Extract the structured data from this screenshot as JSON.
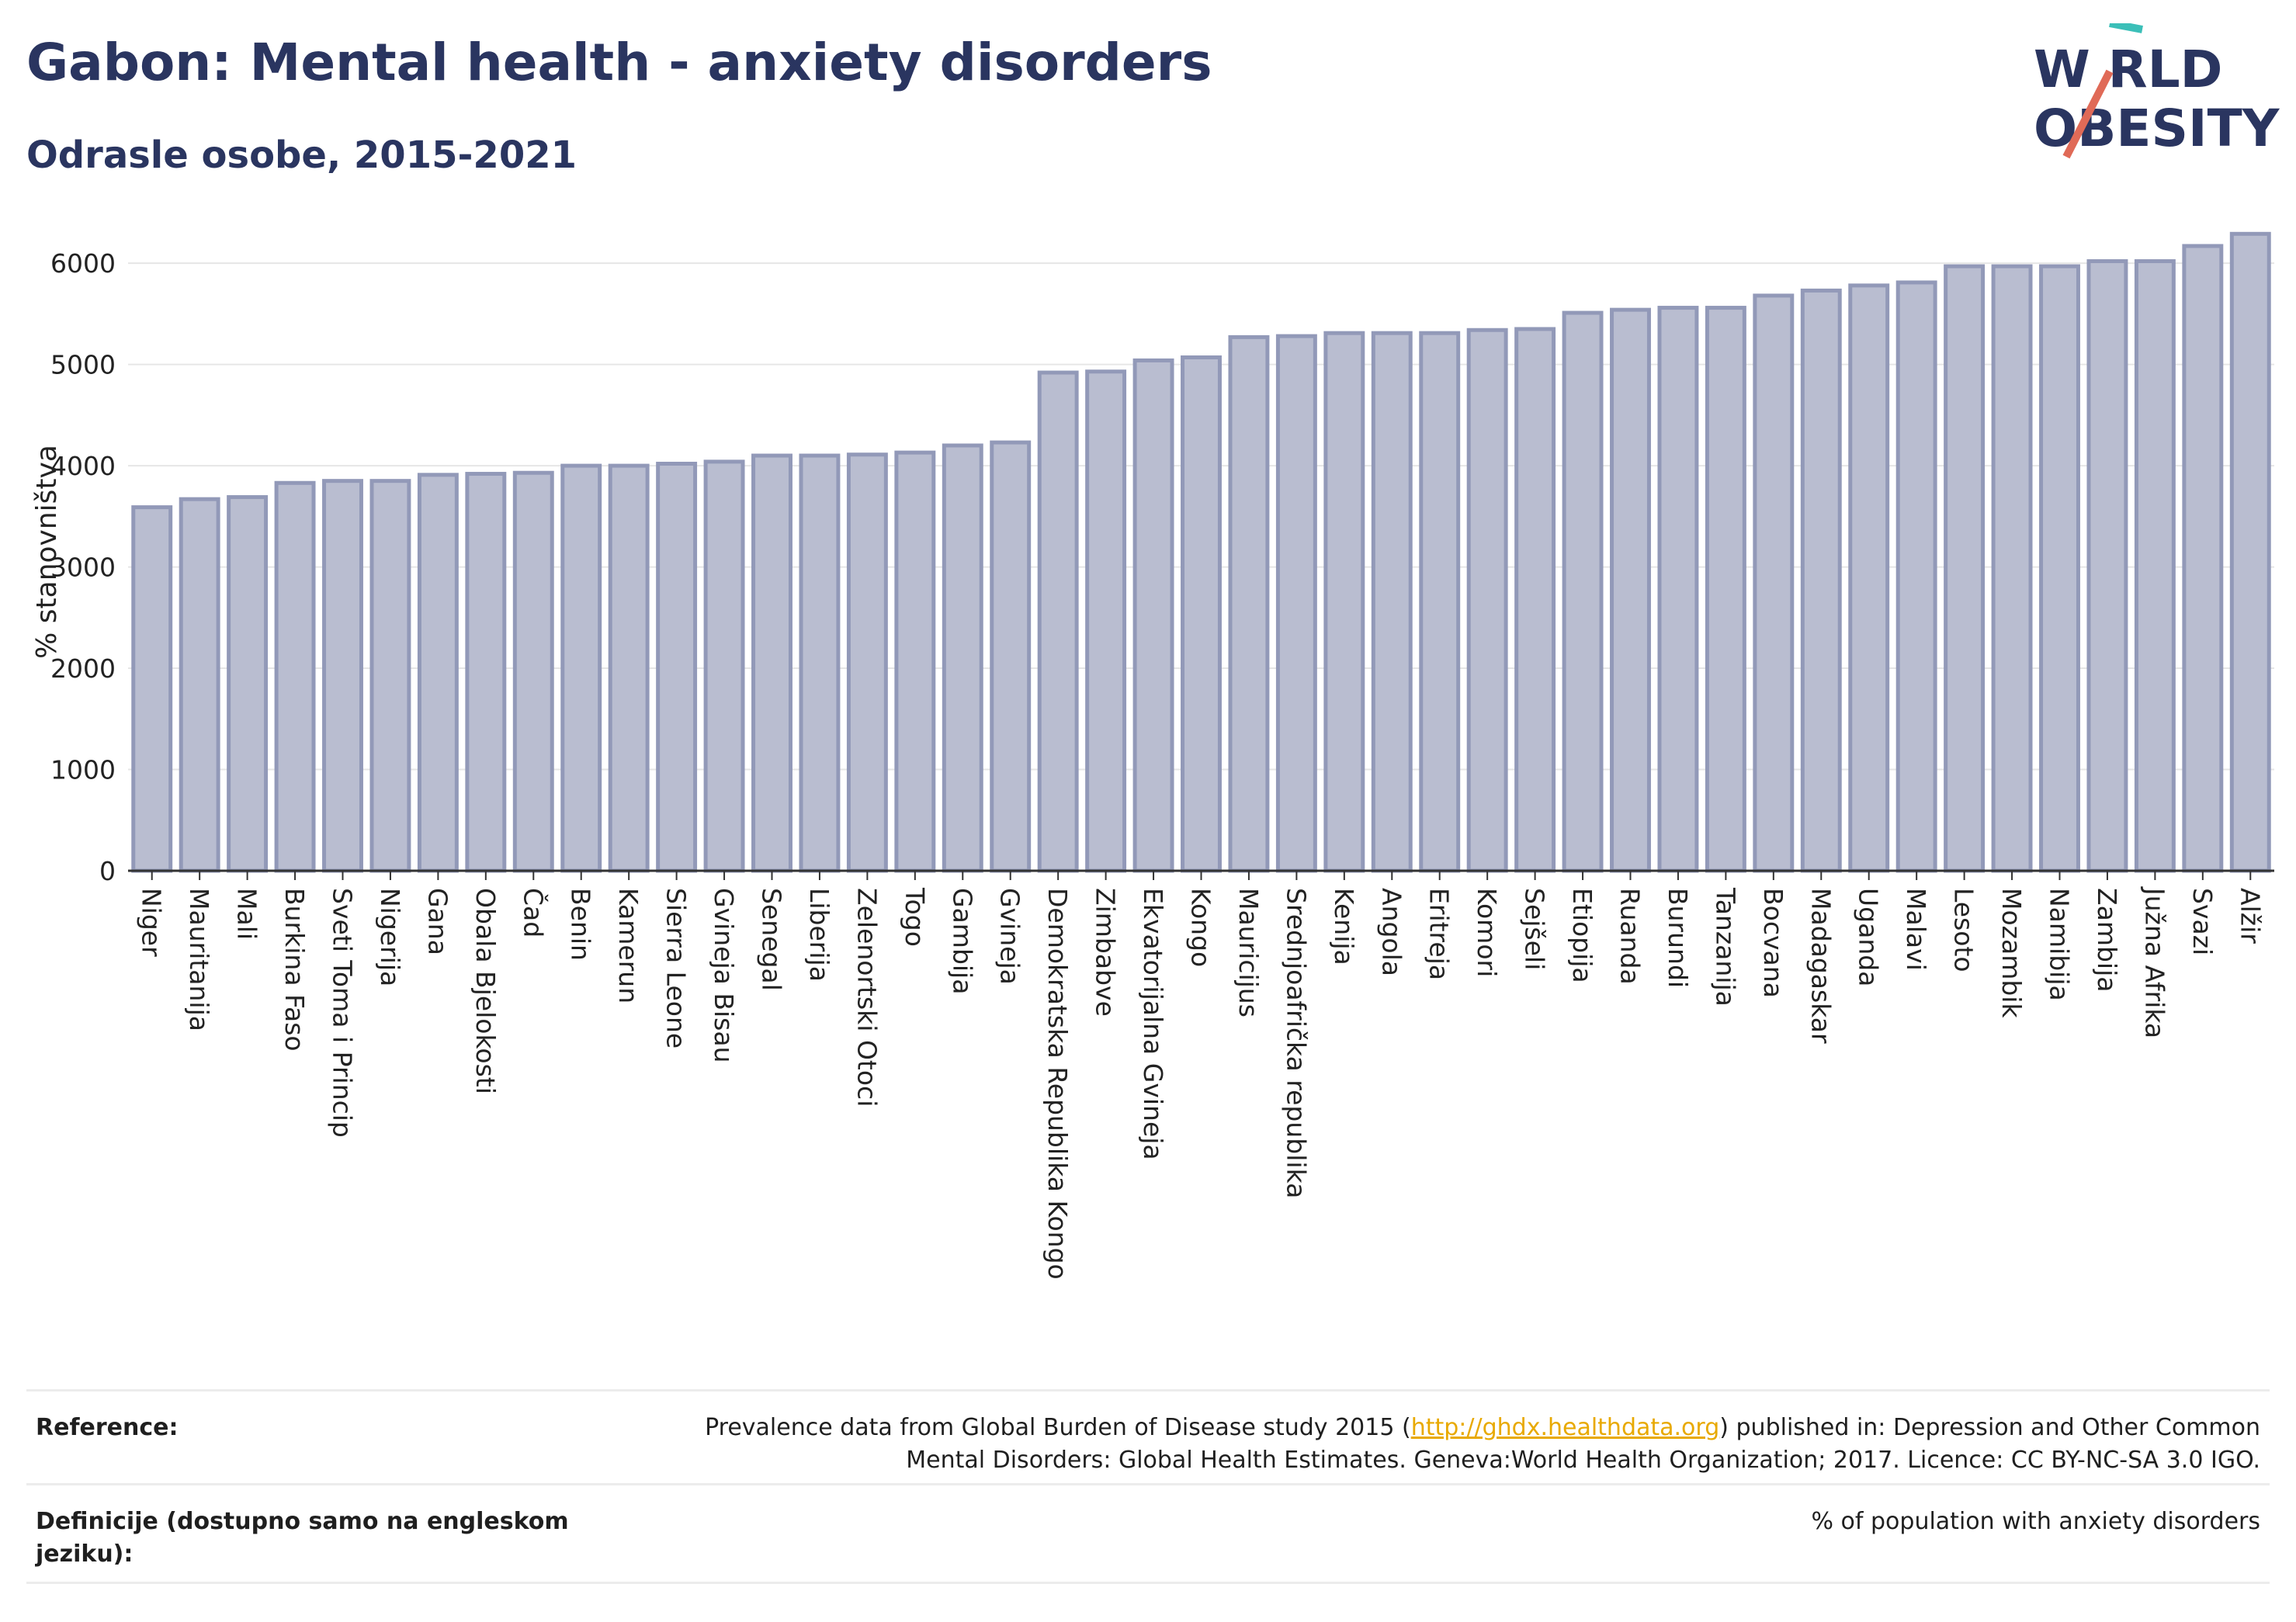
{
  "title": "Gabon: Mental health - anxiety disorders",
  "subtitle": "Odrasle osobe, 2015-2021",
  "logo": {
    "line1": "W RLD",
    "line2": "OBESITY",
    "accent": "#e06a57",
    "accent2": "#3bbfb8"
  },
  "chart_data": {
    "type": "bar",
    "ylabel": "% stanovništva",
    "ylim": [
      0,
      6300
    ],
    "yticks": [
      0,
      1000,
      2000,
      3000,
      4000,
      5000,
      6000
    ],
    "bar_color": "#b9bdd0",
    "bar_border": "#9299b8",
    "categories": [
      "Niger",
      "Mauritanija",
      "Mali",
      "Burkina Faso",
      "Sveti Toma i Princip",
      "Nigerija",
      "Gana",
      "Obala Bjelokosti",
      "Čad",
      "Benin",
      "Kamerun",
      "Sierra Leone",
      "Gvineja Bisau",
      "Senegal",
      "Liberija",
      "Zelenortski Otoci",
      "Togo",
      "Gambija",
      "Gvineja",
      "Demokratska Republika Kongo",
      "Zimbabve",
      "Ekvatorijalna Gvineja",
      "Kongo",
      "Mauricijus",
      "Srednjoafrička republika",
      "Kenija",
      "Angola",
      "Eritreja",
      "Komori",
      "Sejšeli",
      "Etiopija",
      "Ruanda",
      "Burundi",
      "Tanzanija",
      "Bocvana",
      "Madagaskar",
      "Uganda",
      "Malavi",
      "Lesoto",
      "Mozambik",
      "Namibija",
      "Zambija",
      "Južna Afrika",
      "Svazi",
      "Alžir"
    ],
    "values": [
      3590,
      3670,
      3690,
      3830,
      3850,
      3850,
      3910,
      3920,
      3930,
      4000,
      4000,
      4020,
      4040,
      4100,
      4100,
      4110,
      4130,
      4200,
      4230,
      4920,
      4930,
      5040,
      5070,
      5270,
      5280,
      5310,
      5310,
      5310,
      5340,
      5350,
      5510,
      5540,
      5560,
      5560,
      5680,
      5730,
      5780,
      5810,
      5970,
      5970,
      5970,
      6020,
      6020,
      6170,
      6290
    ]
  },
  "reference": {
    "label": "Reference:",
    "text_before": "Prevalence data from Global Burden of Disease study 2015 (",
    "link": "http://ghdx.healthdata.org",
    "text_after": ") published in: Depression and Other Common Mental Disorders: Global Health Estimates. Geneva:World Health Organization; 2017. Licence: CC BY-NC-SA 3.0 IGO."
  },
  "definition": {
    "label": "Definicije (dostupno samo na engleskom jeziku):",
    "text": "% of population with anxiety disorders"
  }
}
